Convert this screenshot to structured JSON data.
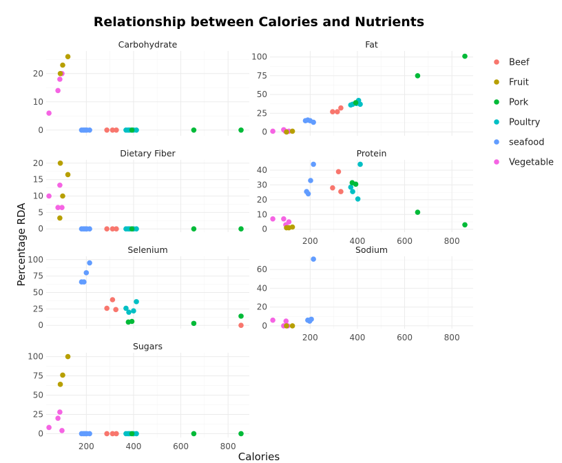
{
  "chart_data": {
    "type": "scatter",
    "title": "Relationship between Calories and Nutrients",
    "xlabel": "Calories",
    "ylabel": "Percentage RDA",
    "xlim": [
      30,
      890
    ],
    "x_ticks": [
      200,
      400,
      600,
      800
    ],
    "grid": true,
    "legend_position": "right",
    "legend": [
      {
        "name": "Beef",
        "color": "#F8766D"
      },
      {
        "name": "Fruit",
        "color": "#B79F00"
      },
      {
        "name": "Pork",
        "color": "#00BA38"
      },
      {
        "name": "Poultry",
        "color": "#00BFC4"
      },
      {
        "name": "seafood",
        "color": "#619CFF"
      },
      {
        "name": "Vegetable",
        "color": "#F564E3"
      }
    ],
    "facets": [
      {
        "name": "Carbohydrate",
        "ylim": [
          -2,
          28
        ],
        "y_ticks": [
          0,
          10,
          20
        ],
        "points": [
          {
            "group": "Vegetable",
            "x": 42,
            "y": 6
          },
          {
            "group": "Vegetable",
            "x": 80,
            "y": 14
          },
          {
            "group": "Vegetable",
            "x": 88,
            "y": 18
          },
          {
            "group": "Vegetable",
            "x": 97,
            "y": 20
          },
          {
            "group": "Fruit",
            "x": 90,
            "y": 20
          },
          {
            "group": "Fruit",
            "x": 100,
            "y": 23
          },
          {
            "group": "Fruit",
            "x": 122,
            "y": 26
          },
          {
            "group": "seafood",
            "x": 180,
            "y": 0
          },
          {
            "group": "seafood",
            "x": 188,
            "y": 0
          },
          {
            "group": "seafood",
            "x": 195,
            "y": 0
          },
          {
            "group": "seafood",
            "x": 202,
            "y": 0
          },
          {
            "group": "seafood",
            "x": 214,
            "y": 0
          },
          {
            "group": "Beef",
            "x": 287,
            "y": 0
          },
          {
            "group": "Beef",
            "x": 311,
            "y": 0
          },
          {
            "group": "Beef",
            "x": 327,
            "y": 0
          },
          {
            "group": "Poultry",
            "x": 368,
            "y": 0
          },
          {
            "group": "Poultry",
            "x": 377,
            "y": 0
          },
          {
            "group": "Poultry",
            "x": 384,
            "y": 0
          },
          {
            "group": "Poultry",
            "x": 400,
            "y": 0
          },
          {
            "group": "Poultry",
            "x": 412,
            "y": 0
          },
          {
            "group": "Pork",
            "x": 393,
            "y": 0
          },
          {
            "group": "Pork",
            "x": 655,
            "y": 0
          },
          {
            "group": "Pork",
            "x": 855,
            "y": 0
          }
        ]
      },
      {
        "name": "Fat",
        "ylim": [
          -5,
          108
        ],
        "y_ticks": [
          0,
          25,
          50,
          75,
          100
        ],
        "points": [
          {
            "group": "Vegetable",
            "x": 42,
            "y": 1
          },
          {
            "group": "Vegetable",
            "x": 88,
            "y": 3
          },
          {
            "group": "Vegetable",
            "x": 95,
            "y": 1
          },
          {
            "group": "Vegetable",
            "x": 110,
            "y": 1
          },
          {
            "group": "Fruit",
            "x": 100,
            "y": 0
          },
          {
            "group": "Fruit",
            "x": 125,
            "y": 1
          },
          {
            "group": "seafood",
            "x": 180,
            "y": 15
          },
          {
            "group": "seafood",
            "x": 190,
            "y": 16
          },
          {
            "group": "seafood",
            "x": 200,
            "y": 15
          },
          {
            "group": "seafood",
            "x": 214,
            "y": 13
          },
          {
            "group": "Beef",
            "x": 295,
            "y": 27
          },
          {
            "group": "Beef",
            "x": 315,
            "y": 27
          },
          {
            "group": "Beef",
            "x": 330,
            "y": 32
          },
          {
            "group": "Poultry",
            "x": 372,
            "y": 36
          },
          {
            "group": "Poultry",
            "x": 380,
            "y": 37
          },
          {
            "group": "Poultry",
            "x": 396,
            "y": 38
          },
          {
            "group": "Poultry",
            "x": 405,
            "y": 42
          },
          {
            "group": "Poultry",
            "x": 412,
            "y": 37
          },
          {
            "group": "Pork",
            "x": 393,
            "y": 39
          },
          {
            "group": "Pork",
            "x": 655,
            "y": 75
          },
          {
            "group": "Pork",
            "x": 855,
            "y": 101
          }
        ]
      },
      {
        "name": "Dietary Fiber",
        "ylim": [
          -1,
          21
        ],
        "y_ticks": [
          0,
          5,
          10,
          15,
          20
        ],
        "points": [
          {
            "group": "Vegetable",
            "x": 42,
            "y": 10
          },
          {
            "group": "Vegetable",
            "x": 80,
            "y": 6.5
          },
          {
            "group": "Vegetable",
            "x": 88,
            "y": 13.3
          },
          {
            "group": "Vegetable",
            "x": 97,
            "y": 6.5
          },
          {
            "group": "Fruit",
            "x": 88,
            "y": 3.3
          },
          {
            "group": "Fruit",
            "x": 90,
            "y": 20
          },
          {
            "group": "Fruit",
            "x": 100,
            "y": 10
          },
          {
            "group": "Fruit",
            "x": 122,
            "y": 16.5
          },
          {
            "group": "seafood",
            "x": 180,
            "y": 0
          },
          {
            "group": "seafood",
            "x": 188,
            "y": 0
          },
          {
            "group": "seafood",
            "x": 195,
            "y": 0
          },
          {
            "group": "seafood",
            "x": 202,
            "y": 0
          },
          {
            "group": "seafood",
            "x": 214,
            "y": 0
          },
          {
            "group": "Beef",
            "x": 287,
            "y": 0
          },
          {
            "group": "Beef",
            "x": 311,
            "y": 0
          },
          {
            "group": "Beef",
            "x": 327,
            "y": 0
          },
          {
            "group": "Poultry",
            "x": 368,
            "y": 0
          },
          {
            "group": "Poultry",
            "x": 377,
            "y": 0
          },
          {
            "group": "Poultry",
            "x": 384,
            "y": 0
          },
          {
            "group": "Poultry",
            "x": 400,
            "y": 0
          },
          {
            "group": "Poultry",
            "x": 412,
            "y": 0
          },
          {
            "group": "Pork",
            "x": 393,
            "y": 0
          },
          {
            "group": "Pork",
            "x": 655,
            "y": 0
          },
          {
            "group": "Pork",
            "x": 855,
            "y": 0
          }
        ]
      },
      {
        "name": "Protein",
        "ylim": [
          -2,
          47
        ],
        "y_ticks": [
          0,
          10,
          20,
          30,
          40
        ],
        "points": [
          {
            "group": "Vegetable",
            "x": 42,
            "y": 7
          },
          {
            "group": "Vegetable",
            "x": 88,
            "y": 7
          },
          {
            "group": "Vegetable",
            "x": 97,
            "y": 3
          },
          {
            "group": "Vegetable",
            "x": 110,
            "y": 5
          },
          {
            "group": "Fruit",
            "x": 100,
            "y": 1
          },
          {
            "group": "Fruit",
            "x": 110,
            "y": 1
          },
          {
            "group": "Fruit",
            "x": 125,
            "y": 1.5
          },
          {
            "group": "seafood",
            "x": 185,
            "y": 25.5
          },
          {
            "group": "seafood",
            "x": 192,
            "y": 24
          },
          {
            "group": "seafood",
            "x": 202,
            "y": 33
          },
          {
            "group": "seafood",
            "x": 214,
            "y": 44
          },
          {
            "group": "Beef",
            "x": 295,
            "y": 28
          },
          {
            "group": "Beef",
            "x": 320,
            "y": 39
          },
          {
            "group": "Beef",
            "x": 330,
            "y": 25.5
          },
          {
            "group": "Poultry",
            "x": 372,
            "y": 28.5
          },
          {
            "group": "Poultry",
            "x": 380,
            "y": 25.5
          },
          {
            "group": "Poultry",
            "x": 402,
            "y": 20.5
          },
          {
            "group": "Poultry",
            "x": 412,
            "y": 44
          },
          {
            "group": "Pork",
            "x": 378,
            "y": 31.5
          },
          {
            "group": "Pork",
            "x": 393,
            "y": 30.5
          },
          {
            "group": "Pork",
            "x": 655,
            "y": 11.5
          },
          {
            "group": "Pork",
            "x": 855,
            "y": 3
          }
        ]
      },
      {
        "name": "Selenium",
        "ylim": [
          -5,
          105
        ],
        "y_ticks": [
          0,
          25,
          50,
          75,
          100
        ],
        "points": [
          {
            "group": "seafood",
            "x": 180,
            "y": 66
          },
          {
            "group": "seafood",
            "x": 190,
            "y": 66
          },
          {
            "group": "seafood",
            "x": 200,
            "y": 80
          },
          {
            "group": "seafood",
            "x": 214,
            "y": 95
          },
          {
            "group": "Beef",
            "x": 287,
            "y": 26
          },
          {
            "group": "Beef",
            "x": 311,
            "y": 39
          },
          {
            "group": "Beef",
            "x": 325,
            "y": 24
          },
          {
            "group": "Beef",
            "x": 855,
            "y": 0
          },
          {
            "group": "Poultry",
            "x": 368,
            "y": 26
          },
          {
            "group": "Poultry",
            "x": 380,
            "y": 20
          },
          {
            "group": "Poultry",
            "x": 400,
            "y": 22
          },
          {
            "group": "Poultry",
            "x": 412,
            "y": 36
          },
          {
            "group": "Pork",
            "x": 378,
            "y": 5
          },
          {
            "group": "Pork",
            "x": 393,
            "y": 6
          },
          {
            "group": "Pork",
            "x": 655,
            "y": 3
          },
          {
            "group": "Pork",
            "x": 855,
            "y": 14
          }
        ]
      },
      {
        "name": "Sodium",
        "ylim": [
          -3,
          74
        ],
        "y_ticks": [
          0,
          20,
          40,
          60
        ],
        "points": [
          {
            "group": "Vegetable",
            "x": 42,
            "y": 6
          },
          {
            "group": "Vegetable",
            "x": 88,
            "y": 0
          },
          {
            "group": "Vegetable",
            "x": 98,
            "y": 5
          },
          {
            "group": "Vegetable",
            "x": 105,
            "y": 0
          },
          {
            "group": "Fruit",
            "x": 100,
            "y": 0
          },
          {
            "group": "Fruit",
            "x": 125,
            "y": 0
          },
          {
            "group": "seafood",
            "x": 190,
            "y": 6
          },
          {
            "group": "seafood",
            "x": 198,
            "y": 5
          },
          {
            "group": "seafood",
            "x": 205,
            "y": 7
          },
          {
            "group": "seafood",
            "x": 214,
            "y": 71
          }
        ]
      },
      {
        "name": "Sugars",
        "ylim": [
          -5,
          105
        ],
        "y_ticks": [
          0,
          25,
          50,
          75,
          100
        ],
        "points": [
          {
            "group": "Vegetable",
            "x": 42,
            "y": 8
          },
          {
            "group": "Vegetable",
            "x": 80,
            "y": 20
          },
          {
            "group": "Vegetable",
            "x": 88,
            "y": 28
          },
          {
            "group": "Vegetable",
            "x": 97,
            "y": 4
          },
          {
            "group": "Fruit",
            "x": 90,
            "y": 64
          },
          {
            "group": "Fruit",
            "x": 100,
            "y": 76
          },
          {
            "group": "Fruit",
            "x": 122,
            "y": 100
          },
          {
            "group": "seafood",
            "x": 180,
            "y": 0
          },
          {
            "group": "seafood",
            "x": 188,
            "y": 0
          },
          {
            "group": "seafood",
            "x": 195,
            "y": 0
          },
          {
            "group": "seafood",
            "x": 202,
            "y": 0
          },
          {
            "group": "seafood",
            "x": 214,
            "y": 0
          },
          {
            "group": "Beef",
            "x": 287,
            "y": 0
          },
          {
            "group": "Beef",
            "x": 311,
            "y": 0
          },
          {
            "group": "Beef",
            "x": 327,
            "y": 0
          },
          {
            "group": "Poultry",
            "x": 368,
            "y": 0
          },
          {
            "group": "Poultry",
            "x": 377,
            "y": 0
          },
          {
            "group": "Poultry",
            "x": 384,
            "y": 0
          },
          {
            "group": "Poultry",
            "x": 400,
            "y": 0
          },
          {
            "group": "Poultry",
            "x": 412,
            "y": 0
          },
          {
            "group": "Pork",
            "x": 393,
            "y": 0
          },
          {
            "group": "Pork",
            "x": 655,
            "y": 0
          },
          {
            "group": "Pork",
            "x": 855,
            "y": 0
          }
        ]
      }
    ]
  }
}
